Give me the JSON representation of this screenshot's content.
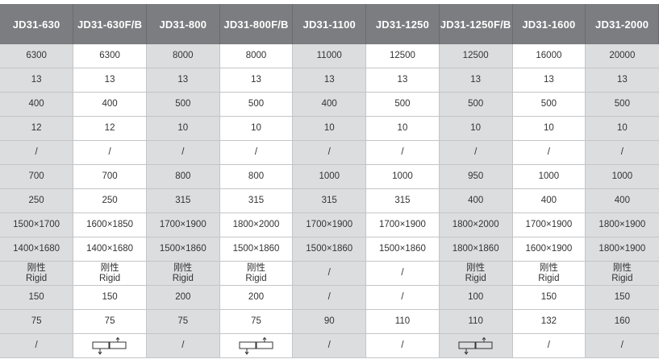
{
  "columns": [
    "JD31-630",
    "JD31-630F/B",
    "JD31-800",
    "JD31-800F/B",
    "JD31-1100",
    "JD31-1250",
    "JD31-1250F/B",
    "JD31-1600",
    "JD31-2000"
  ],
  "rows": [
    [
      "6300",
      "6300",
      "8000",
      "8000",
      "11000",
      "12500",
      "12500",
      "16000",
      "20000"
    ],
    [
      "13",
      "13",
      "13",
      "13",
      "13",
      "13",
      "13",
      "13",
      "13"
    ],
    [
      "400",
      "400",
      "500",
      "500",
      "400",
      "500",
      "500",
      "500",
      "500"
    ],
    [
      "12",
      "12",
      "10",
      "10",
      "10",
      "10",
      "10",
      "10",
      "10"
    ],
    [
      "/",
      "/",
      "/",
      "/",
      "/",
      "/",
      "/",
      "/",
      "/"
    ],
    [
      "700",
      "700",
      "800",
      "800",
      "1000",
      "1000",
      "950",
      "1000",
      "1000"
    ],
    [
      "250",
      "250",
      "315",
      "315",
      "315",
      "315",
      "400",
      "400",
      "400"
    ],
    [
      "1500×1700",
      "1600×1850",
      "1700×1900",
      "1800×2000",
      "1700×1900",
      "1700×1900",
      "1800×2000",
      "1700×1900",
      "1800×1900"
    ],
    [
      "1400×1680",
      "1400×1680",
      "1500×1860",
      "1500×1860",
      "1500×1860",
      "1500×1860",
      "1800×1860",
      "1600×1900",
      "1800×1900"
    ],
    [
      "刚性\nRigid",
      "刚性\nRigid",
      "刚性\nRigid",
      "刚性\nRigid",
      "/",
      "/",
      "刚性\nRigid",
      "刚性\nRigid",
      "刚性\nRigid"
    ],
    [
      "150",
      "150",
      "200",
      "200",
      "/",
      "/",
      "100",
      "150",
      "150"
    ],
    [
      "75",
      "75",
      "75",
      "75",
      "90",
      "110",
      "110",
      "132",
      "160"
    ],
    [
      "/",
      "@sliding-bolster-icon",
      "/",
      "@sliding-bolster-icon",
      "/",
      "/",
      "@sliding-bolster-icon",
      "/",
      "/"
    ]
  ]
}
